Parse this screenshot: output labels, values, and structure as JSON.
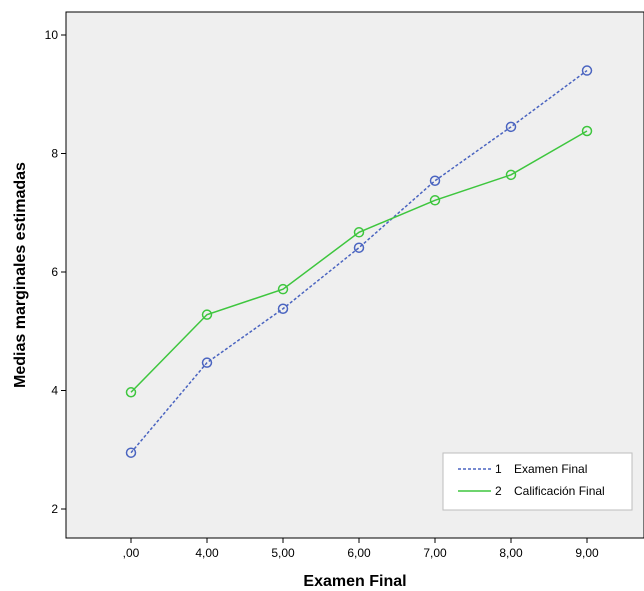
{
  "chart_data": {
    "type": "line",
    "xlabel": "Examen Final",
    "ylabel": "Medias marginales estimadas",
    "categories": [
      ",00",
      "4,00",
      "5,00",
      "6,00",
      "7,00",
      "8,00",
      "9,00"
    ],
    "y_ticks": [
      2,
      4,
      6,
      8,
      10
    ],
    "y_tick_labels": [
      "2",
      "4",
      "6",
      "8",
      "10"
    ],
    "ylim": [
      1.5,
      10.4
    ],
    "grid": false,
    "plot_background": "#efefef",
    "legend_position": "bottom-right",
    "series": [
      {
        "name": "Examen Final",
        "legend_number": "1",
        "color": "#4a64c0",
        "line_style": "dashed",
        "marker": "circle",
        "values": [
          2.95,
          4.47,
          5.38,
          6.41,
          7.54,
          8.45,
          9.4
        ]
      },
      {
        "name": "Calificación Final",
        "legend_number": "2",
        "color": "#3ec63e",
        "line_style": "solid",
        "marker": "circle",
        "values": [
          3.97,
          5.28,
          5.71,
          6.67,
          7.21,
          7.64,
          8.38
        ]
      }
    ]
  }
}
